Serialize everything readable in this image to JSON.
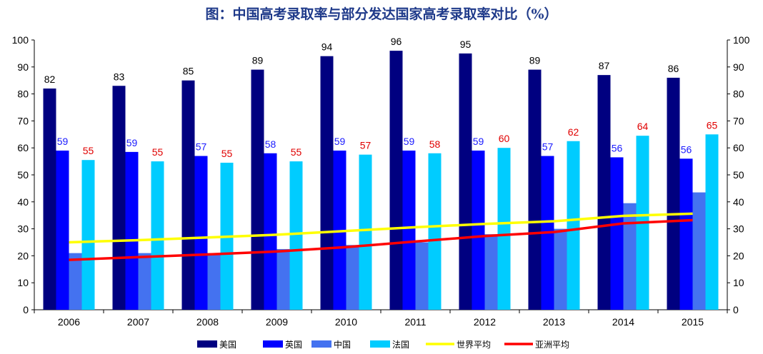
{
  "chart_data": {
    "type": "bar",
    "title": "图：中国高考录取率与部分发达国家高考录取率对比（%）",
    "categories": [
      "2006",
      "2007",
      "2008",
      "2009",
      "2010",
      "2011",
      "2012",
      "2013",
      "2014",
      "2015"
    ],
    "ylim": [
      0,
      100
    ],
    "yticks": [
      0,
      10,
      20,
      30,
      40,
      50,
      60,
      70,
      80,
      90,
      100
    ],
    "grid": false,
    "legend_position": "bottom",
    "series": [
      {
        "name": "美国",
        "kind": "bar",
        "color": "#000080",
        "values": [
          82,
          83,
          85,
          89,
          94,
          96,
          95,
          89,
          87,
          86
        ],
        "labels": [
          "82",
          "83",
          "85",
          "89",
          "94",
          "96",
          "95",
          "89",
          "87",
          "86"
        ],
        "label_color": "#000000"
      },
      {
        "name": "英国",
        "kind": "bar",
        "color": "#0000ff",
        "values": [
          59,
          58.5,
          57,
          58,
          59,
          59,
          59,
          57,
          56.5,
          56
        ],
        "labels": [
          "59",
          "59",
          "57",
          "58",
          "59",
          "59",
          "59",
          "57",
          "56",
          "56"
        ],
        "label_color": "#1a1aff"
      },
      {
        "name": "中国",
        "kind": "bar",
        "color": "#4472f0",
        "values": [
          21,
          21,
          21,
          22.5,
          24,
          25,
          28,
          30,
          39.5,
          43.5
        ],
        "labels": [],
        "label_color": "#000000"
      },
      {
        "name": "法国",
        "kind": "bar",
        "color": "#00ccff",
        "values": [
          55.5,
          55,
          54.5,
          55,
          57.5,
          58,
          60,
          62.5,
          64.5,
          65
        ],
        "labels": [
          "55",
          "55",
          "55",
          "55",
          "57",
          "58",
          "60",
          "62",
          "64",
          "65"
        ],
        "label_color": "#e00000"
      },
      {
        "name": "世界平均",
        "kind": "line",
        "color": "#ffff00",
        "values": [
          25,
          25.8,
          26.8,
          27.8,
          29.2,
          30.6,
          31.8,
          32.8,
          34.8,
          35.6
        ]
      },
      {
        "name": "亚洲平均",
        "kind": "line",
        "color": "#ff0000",
        "values": [
          18.5,
          19.5,
          20.5,
          21.6,
          23.2,
          25.3,
          27.3,
          28.8,
          32,
          33.2
        ]
      }
    ]
  }
}
